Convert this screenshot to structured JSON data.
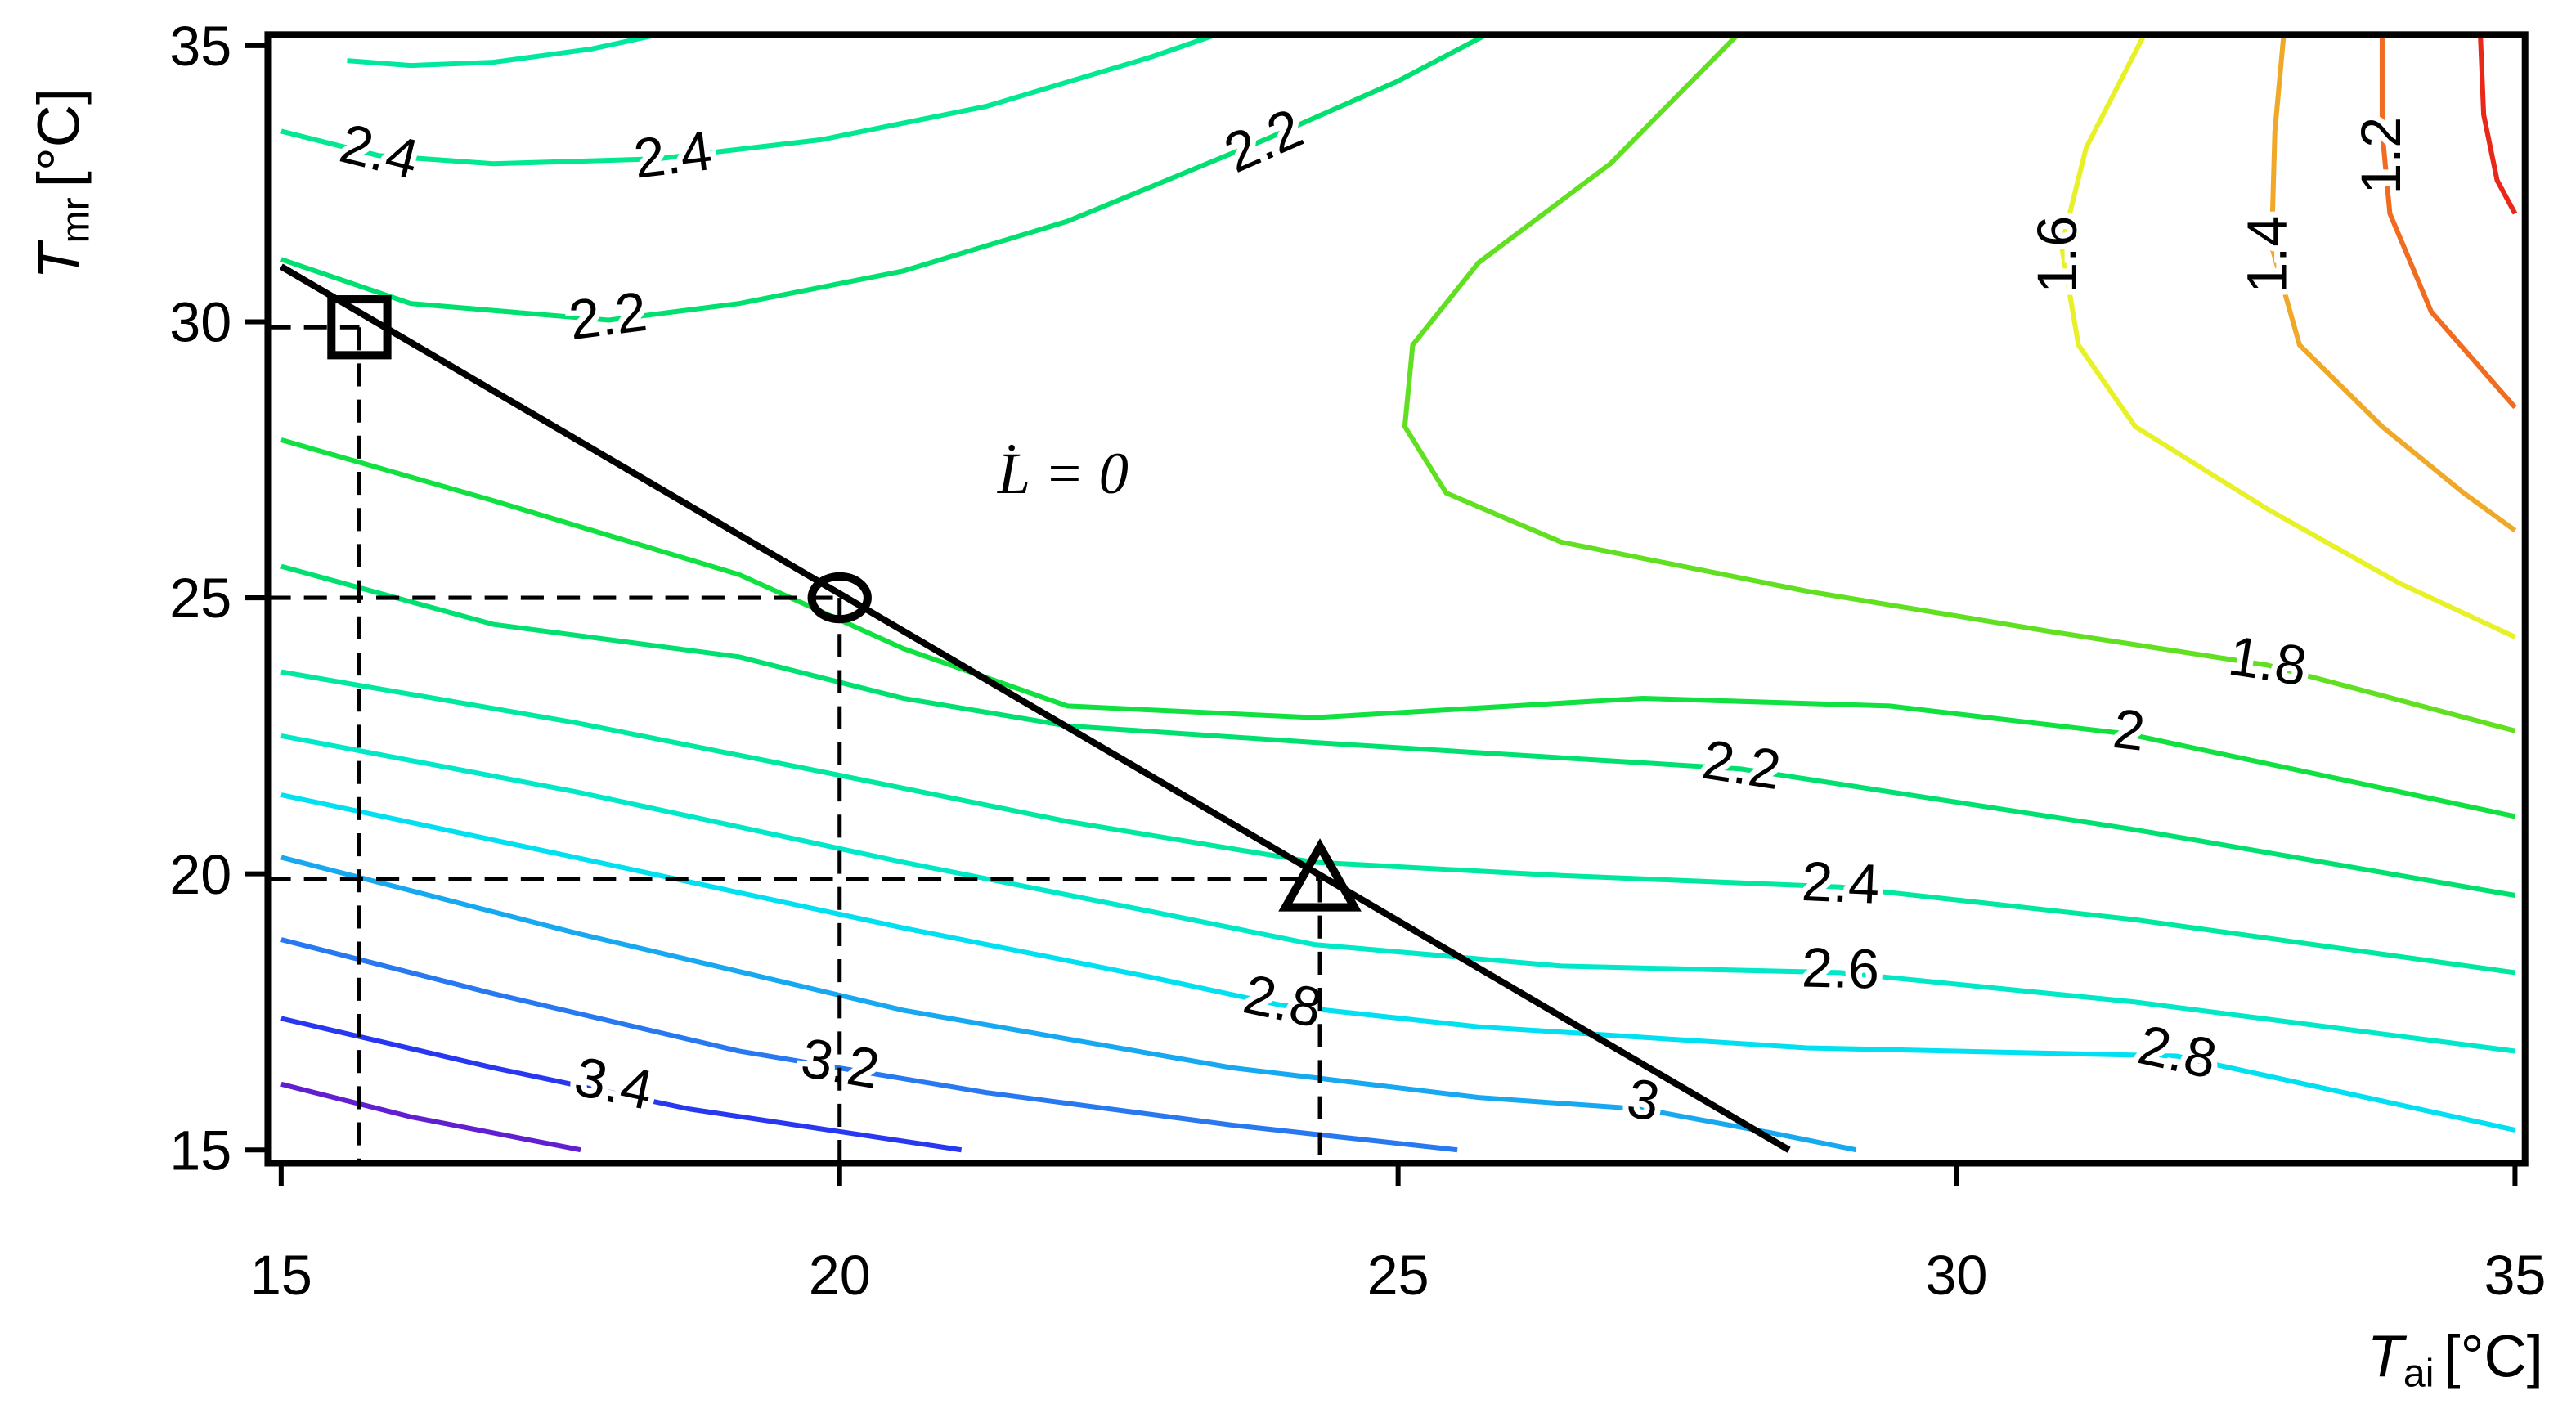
{
  "chart_data": {
    "type": "contour",
    "xlim": [
      14.88,
      35.09
    ],
    "ylim": [
      14.76,
      35.2
    ],
    "xticks": [
      15,
      20,
      25,
      30,
      35
    ],
    "yticks": [
      15,
      20,
      25,
      30,
      35
    ],
    "x_label": {
      "symbol": "T",
      "subscript": "ai",
      "unit": "[°C]"
    },
    "y_label": {
      "symbol": "T",
      "subscript": "mr",
      "unit": "[°C]"
    },
    "series": [
      {
        "color": "#6020d0",
        "x": [
          15,
          16.16,
          17.68
        ],
        "y": [
          16.19,
          15.6,
          15
        ]
      },
      {
        "color": "#2838f0",
        "x": [
          15,
          16.9,
          18.66,
          21.09
        ],
        "y": [
          17.38,
          16.49,
          15.74,
          15
        ],
        "labels": [
          {
            "text": "3.4",
            "x": 17.97,
            "y": 16.13
          }
        ]
      },
      {
        "color": "#2878f0",
        "x": [
          15,
          16.9,
          19.1,
          21.31,
          23.51,
          25.53
        ],
        "y": [
          18.81,
          17.83,
          16.79,
          16.04,
          15.45,
          15
        ],
        "labels": [
          {
            "text": "3.2",
            "x": 20,
            "y": 16.49
          }
        ]
      },
      {
        "color": "#18a8f0",
        "x": [
          15,
          17.63,
          20.57,
          23.51,
          25.72,
          27.19,
          28.37,
          29.1
        ],
        "y": [
          20.3,
          18.93,
          17.53,
          16.49,
          15.95,
          15.74,
          15.3,
          15
        ],
        "labels": [
          {
            "text": "3",
            "x": 27.19,
            "y": 15.83
          }
        ]
      },
      {
        "color": "#00e0f0",
        "x": [
          15,
          17.63,
          20.57,
          22.78,
          23.96,
          25.72,
          28.66,
          31.97,
          35
        ],
        "y": [
          21.43,
          20.3,
          19.02,
          18.13,
          17.62,
          17.23,
          16.85,
          16.7,
          15.36
        ],
        "labels": [
          {
            "text": "2.8",
            "x": 23.96,
            "y": 17.62
          },
          {
            "text": "2.8",
            "x": 31.97,
            "y": 16.7
          }
        ]
      },
      {
        "color": "#00e8c8",
        "x": [
          15,
          17.63,
          20.57,
          22.78,
          24.25,
          26.46,
          28.96,
          31.6,
          35
        ],
        "y": [
          22.5,
          21.49,
          20.21,
          19.32,
          18.72,
          18.33,
          18.21,
          17.68,
          16.79
        ],
        "labels": [
          {
            "text": "2.6",
            "x": 28.96,
            "y": 18.21
          }
        ]
      },
      {
        "color": "#00e8a0",
        "x": [
          15,
          17.63,
          19.84,
          22.04,
          24.25,
          26.46,
          28.96,
          31.6,
          35
        ],
        "y": [
          23.66,
          22.74,
          21.85,
          20.95,
          20.21,
          19.97,
          19.76,
          19.17,
          18.21
        ],
        "labels": [
          {
            "text": "2.4",
            "x": 28.96,
            "y": 19.76
          }
        ]
      },
      {
        "color": "#00e070",
        "x": [
          15,
          16.9,
          19.1,
          20.57,
          22.04,
          24.25,
          28.07,
          31.6,
          35
        ],
        "y": [
          25.57,
          24.52,
          23.93,
          23.18,
          22.68,
          22.38,
          21.9,
          20.8,
          19.61
        ],
        "labels": [
          {
            "text": "2.2",
            "x": 28.07,
            "y": 21.9
          }
        ]
      },
      {
        "color": "#10e040",
        "x": [
          15,
          16.9,
          19.1,
          20.57,
          22.04,
          24.25,
          27.19,
          29.4,
          31.54,
          35
        ],
        "y": [
          27.86,
          26.76,
          25.42,
          24.08,
          23.04,
          22.83,
          23.18,
          23.04,
          22.53,
          21.04
        ],
        "labels": [
          {
            "text": "2",
            "x": 31.54,
            "y": 22.53
          }
        ]
      },
      {
        "color": "#00e890",
        "x": [
          15,
          15.87,
          16.9,
          18.37,
          19.84,
          21.31,
          22.78,
          23.37
        ],
        "y": [
          33.45,
          33.01,
          32.86,
          32.95,
          33.3,
          33.9,
          34.79,
          35.2
        ],
        "labels": [
          {
            "text": "2.4",
            "x": 15.87,
            "y": 33.01
          },
          {
            "text": "2.4",
            "x": 18.51,
            "y": 32.95
          }
        ]
      },
      {
        "color": "#00e8a0",
        "x": [
          15.59,
          16.16,
          16.9,
          17.78,
          18.37
        ],
        "y": [
          34.73,
          34.64,
          34.7,
          34.94,
          35.2
        ]
      },
      {
        "color": "#00e070",
        "x": [
          15,
          16.16,
          17.93,
          19.1,
          20.57,
          22.04,
          23.81,
          24.99,
          25.79
        ],
        "y": [
          31.13,
          30.33,
          30.03,
          30.33,
          30.92,
          31.82,
          33.3,
          34.35,
          35.2
        ],
        "labels": [
          {
            "text": "2.2",
            "x": 17.93,
            "y": 30.03
          },
          {
            "text": "2.2",
            "x": 23.81,
            "y": 33.21
          }
        ]
      },
      {
        "color": "#60e020",
        "x": [
          28.04,
          26.9,
          25.72,
          25.13,
          25.06,
          25.43,
          26.46,
          28.66,
          30.87,
          32.78,
          35
        ],
        "y": [
          35.2,
          32.86,
          31.07,
          29.58,
          28.1,
          26.9,
          26.01,
          25.12,
          24.38,
          23.78,
          22.59
        ],
        "labels": [
          {
            "text": "1.8",
            "x": 32.78,
            "y": 23.78
          }
        ]
      },
      {
        "color": "#e8f028",
        "x": [
          31.68,
          31.16,
          30.94,
          31.09,
          31.6,
          32.78,
          33.96,
          35
        ],
        "y": [
          35.2,
          33.15,
          31.37,
          29.58,
          28.1,
          26.61,
          25.27,
          24.29
        ],
        "labels": [
          {
            "text": "1.6",
            "x": 30.94,
            "y": 31.22
          }
        ]
      },
      {
        "color": "#f0a828",
        "x": [
          32.93,
          32.85,
          32.82,
          33.07,
          33.81,
          34.54,
          35
        ],
        "y": [
          35.2,
          33.45,
          31.37,
          29.58,
          28.1,
          26.9,
          26.22
        ],
        "labels": [
          {
            "text": "1.4",
            "x": 32.82,
            "y": 31.22
          }
        ]
      },
      {
        "color": "#f06c20",
        "x": [
          33.81,
          33.81,
          33.88,
          34.25,
          35
        ],
        "y": [
          35.2,
          33.45,
          31.96,
          30.18,
          28.45
        ],
        "labels": [
          {
            "text": "1.2",
            "x": 33.84,
            "y": 33.01
          }
        ]
      },
      {
        "color": "#e82818",
        "x": [
          34.69,
          34.72,
          34.84,
          35
        ],
        "y": [
          35.2,
          33.75,
          32.56,
          31.96
        ]
      }
    ],
    "reference_line": {
      "color": "#000000",
      "x": [
        15,
        28.5
      ],
      "y": [
        31,
        15
      ]
    },
    "markers": [
      {
        "shape": "square",
        "x": 15.7,
        "y": 29.9
      },
      {
        "shape": "circle",
        "x": 20,
        "y": 25
      },
      {
        "shape": "triangle",
        "x": 24.3,
        "y": 19.9
      }
    ],
    "annotation": {
      "text": "L̇ = 0",
      "x": 22.0,
      "y": 26.9
    }
  }
}
